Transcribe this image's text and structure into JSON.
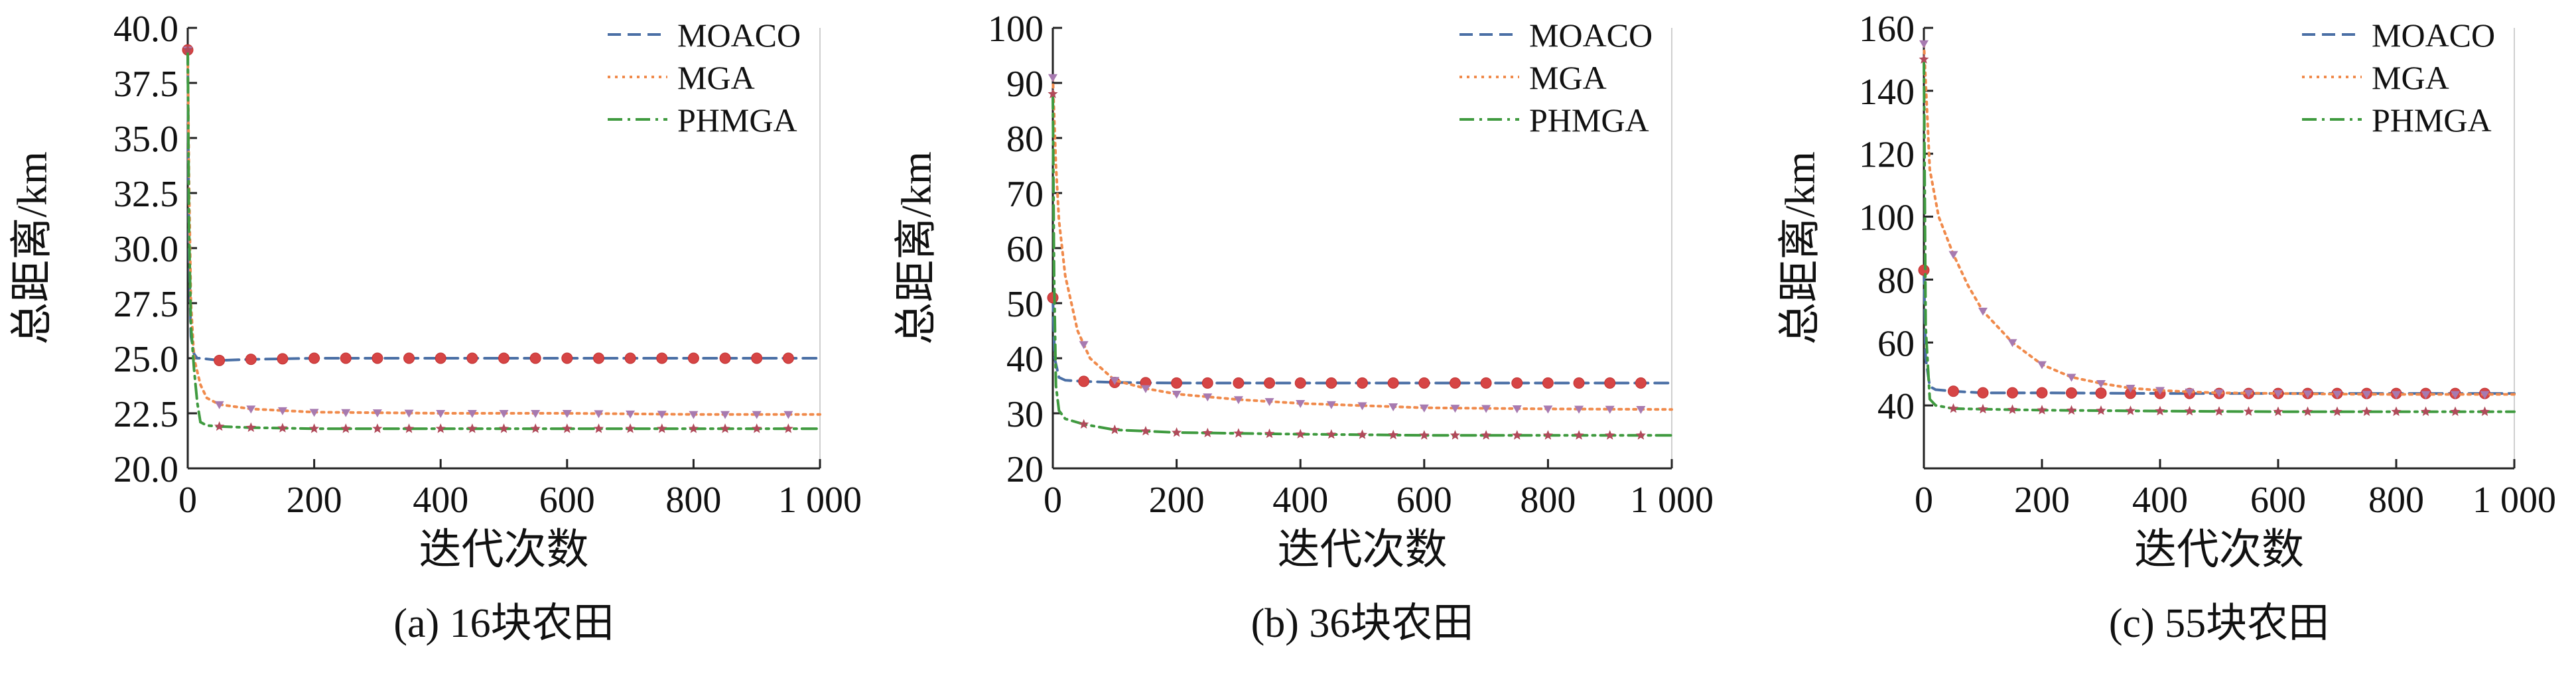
{
  "colors": {
    "MOACO": "#4a6fa5",
    "MGA": "#f08a4b",
    "PHMGA": "#3f9a3f",
    "marker_circle": "#d64545",
    "marker_triangle": "#a77ab0",
    "marker_star": "#b04a5a"
  },
  "chart_data": [
    {
      "type": "line",
      "caption": "(a) 16块农田",
      "xlabel": "迭代次数",
      "ylabel": "总距离/km",
      "xlim": [
        0,
        1000
      ],
      "ylim": [
        20,
        40
      ],
      "xticks": [
        0,
        200,
        400,
        600,
        800,
        1000
      ],
      "xtick_labels": [
        "0",
        "200",
        "400",
        "600",
        "800",
        "1 000"
      ],
      "yticks": [
        20,
        22.5,
        25,
        27.5,
        30,
        32.5,
        35,
        37.5,
        40
      ],
      "ytick_labels": [
        "20.0",
        "22.5",
        "25.0",
        "27.5",
        "30.0",
        "32.5",
        "35.0",
        "37.5",
        "40.0"
      ],
      "legend_position": "top-right",
      "grid": false,
      "series": [
        {
          "name": "MOACO",
          "x": [
            0,
            2,
            5,
            10,
            15,
            20,
            50,
            100,
            200,
            400,
            600,
            800,
            1000
          ],
          "y": [
            39.0,
            30.0,
            26.0,
            25.2,
            25.0,
            25.0,
            24.9,
            24.95,
            25.0,
            25.0,
            25.0,
            25.0,
            25.0
          ]
        },
        {
          "name": "MGA",
          "x": [
            0,
            2,
            5,
            10,
            20,
            30,
            50,
            100,
            200,
            400,
            600,
            800,
            1000
          ],
          "y": [
            39.0,
            33.0,
            27.5,
            25.0,
            23.8,
            23.2,
            22.9,
            22.7,
            22.55,
            22.5,
            22.5,
            22.45,
            22.45
          ]
        },
        {
          "name": "PHMGA",
          "x": [
            0,
            2,
            5,
            10,
            15,
            20,
            30,
            50,
            100,
            200,
            400,
            600,
            800,
            1000
          ],
          "y": [
            39.0,
            31.0,
            26.5,
            24.5,
            23.0,
            22.1,
            21.95,
            21.9,
            21.85,
            21.8,
            21.8,
            21.8,
            21.8,
            21.8
          ]
        }
      ]
    },
    {
      "type": "line",
      "caption": "(b) 36块农田",
      "xlabel": "迭代次数",
      "ylabel": "总距离/km",
      "xlim": [
        0,
        1000
      ],
      "ylim": [
        20,
        100
      ],
      "xticks": [
        0,
        200,
        400,
        600,
        800,
        1000
      ],
      "xtick_labels": [
        "0",
        "200",
        "400",
        "600",
        "800",
        "1 000"
      ],
      "yticks": [
        20,
        30,
        40,
        50,
        60,
        70,
        80,
        90,
        100
      ],
      "ytick_labels": [
        "20",
        "30",
        "40",
        "50",
        "60",
        "70",
        "80",
        "90",
        "100"
      ],
      "legend_position": "top-right",
      "grid": false,
      "series": [
        {
          "name": "MOACO",
          "x": [
            0,
            3,
            10,
            20,
            50,
            100,
            200,
            400,
            600,
            800,
            1000
          ],
          "y": [
            51.0,
            40.0,
            36.5,
            36.0,
            35.8,
            35.6,
            35.5,
            35.5,
            35.5,
            35.5,
            35.5
          ]
        },
        {
          "name": "MGA",
          "x": [
            0,
            5,
            10,
            20,
            40,
            60,
            100,
            150,
            200,
            300,
            400,
            600,
            800,
            1000
          ],
          "y": [
            91.0,
            75.0,
            65.0,
            55.0,
            45.0,
            40.0,
            36.0,
            34.5,
            33.5,
            32.5,
            31.8,
            31.0,
            30.8,
            30.7
          ]
        },
        {
          "name": "PHMGA",
          "x": [
            0,
            2,
            5,
            10,
            20,
            50,
            100,
            200,
            400,
            600,
            800,
            1000
          ],
          "y": [
            88.0,
            55.0,
            35.0,
            30.5,
            29.0,
            28.0,
            27.0,
            26.5,
            26.2,
            26.0,
            26.0,
            26.0
          ]
        }
      ]
    },
    {
      "type": "line",
      "caption": "(c) 55块农田",
      "xlabel": "迭代次数",
      "ylabel": "总距离/km",
      "xlim": [
        0,
        1000
      ],
      "ylim": [
        20,
        160
      ],
      "xticks": [
        0,
        200,
        400,
        600,
        800,
        1000
      ],
      "xtick_labels": [
        "0",
        "200",
        "400",
        "600",
        "800",
        "1 000"
      ],
      "yticks": [
        40,
        60,
        80,
        100,
        120,
        140,
        160
      ],
      "ytick_labels": [
        "40",
        "60",
        "80",
        "100",
        "120",
        "140",
        "160"
      ],
      "legend_position": "top-right",
      "grid": false,
      "series": [
        {
          "name": "MOACO",
          "x": [
            0,
            3,
            10,
            20,
            50,
            100,
            200,
            400,
            600,
            800,
            1000
          ],
          "y": [
            83.0,
            55.0,
            46.0,
            45.0,
            44.5,
            44.0,
            44.0,
            43.8,
            43.8,
            43.8,
            43.8
          ]
        },
        {
          "name": "MGA",
          "x": [
            0,
            10,
            25,
            50,
            75,
            100,
            150,
            200,
            250,
            300,
            350,
            400,
            450,
            500,
            600,
            700,
            800,
            900,
            1000
          ],
          "y": [
            155.0,
            115.0,
            100.0,
            88.0,
            78.0,
            70.0,
            60.0,
            53.0,
            49.0,
            47.0,
            45.5,
            44.8,
            44.3,
            44.0,
            43.8,
            43.6,
            43.5,
            43.5,
            43.5
          ]
        },
        {
          "name": "PHMGA",
          "x": [
            0,
            3,
            10,
            20,
            50,
            100,
            200,
            400,
            600,
            800,
            1000
          ],
          "y": [
            150.0,
            65.0,
            42.0,
            40.0,
            39.0,
            38.8,
            38.5,
            38.2,
            38.0,
            38.0,
            38.0
          ]
        }
      ]
    }
  ]
}
